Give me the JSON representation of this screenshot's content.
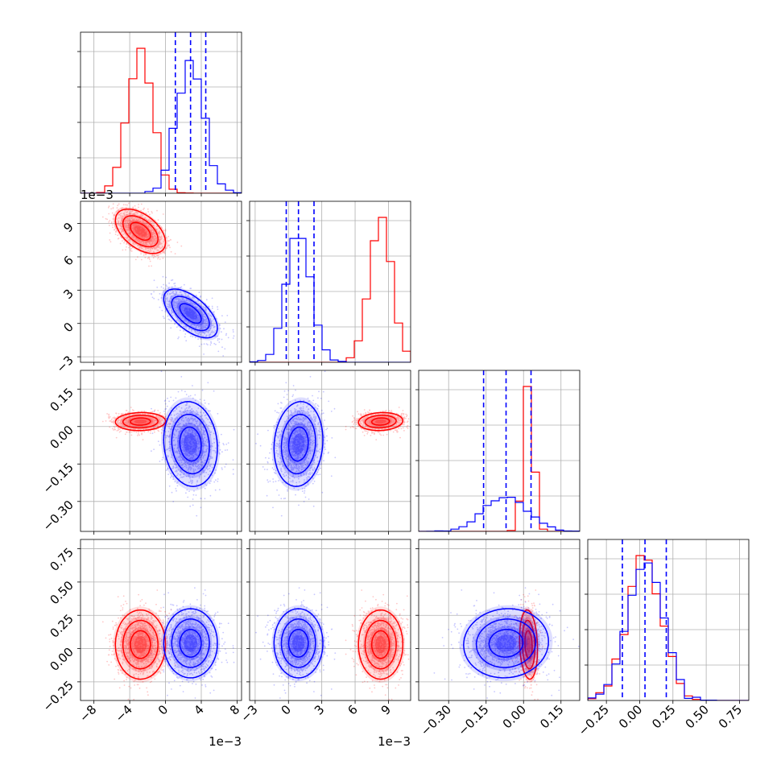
{
  "chart_data": {
    "type": "corner",
    "title": "",
    "grid": true,
    "legend": "",
    "colors": {
      "series_a": "#ff0000",
      "series_b": "#0000ff",
      "grid": "#b0b0b0"
    },
    "parameters": [
      {
        "range": [
          -0.0095,
          0.0085
        ],
        "ticks": [
          -8,
          -4,
          0,
          4,
          8
        ],
        "tick_labels": [
          "−8",
          "−4",
          "0",
          "4",
          "8"
        ],
        "tick_scale": 0.001,
        "offset_label": "1e−3"
      },
      {
        "range": [
          -0.0035,
          0.011
        ],
        "ticks": [
          -3,
          0,
          3,
          6,
          9
        ],
        "tick_labels": [
          "−3",
          "0",
          "3",
          "6",
          "9"
        ],
        "tick_scale": 0.001,
        "offset_label": "1e−3"
      },
      {
        "range": [
          -0.42,
          0.225
        ],
        "ticks": [
          -0.3,
          -0.15,
          0.0,
          0.15
        ],
        "tick_labels": [
          "−0.30",
          "−0.15",
          "0.00",
          "0.15"
        ],
        "tick_scale": 1,
        "offset_label": ""
      },
      {
        "range": [
          -0.39,
          0.82
        ],
        "ticks": [
          -0.25,
          0.0,
          0.25,
          0.5,
          0.75
        ],
        "tick_labels": [
          "−0.25",
          "0.00",
          "0.25",
          "0.50",
          "0.75"
        ],
        "tick_scale": 1,
        "offset_label": ""
      }
    ],
    "series": [
      {
        "color": "#ff0000",
        "means": [
          -0.0028,
          0.0083,
          0.02,
          0.03
        ],
        "stds": [
          0.0014,
          0.001,
          0.018,
          0.13
        ],
        "correlations": [
          [
            0,
            1,
            -0.5
          ],
          [
            0,
            2,
            0.05
          ],
          [
            1,
            2,
            0.1
          ],
          [
            2,
            3,
            -0.15
          ]
        ]
      },
      {
        "color": "#0000ff",
        "means": [
          0.0028,
          0.0009,
          -0.07,
          0.04
        ],
        "stds": [
          0.0015,
          0.0011,
          0.085,
          0.13
        ],
        "correlations": [
          [
            0,
            1,
            -0.6
          ],
          [
            0,
            2,
            -0.1
          ],
          [
            1,
            2,
            0.1
          ],
          [
            2,
            3,
            0.05
          ]
        ]
      }
    ],
    "quantile_lines": [
      [
        0.0011,
        0.0028,
        0.0045
      ],
      [
        -0.0002,
        0.0009,
        0.0023
      ],
      [
        -0.16,
        -0.07,
        0.03
      ],
      [
        -0.13,
        0.04,
        0.2
      ]
    ]
  }
}
